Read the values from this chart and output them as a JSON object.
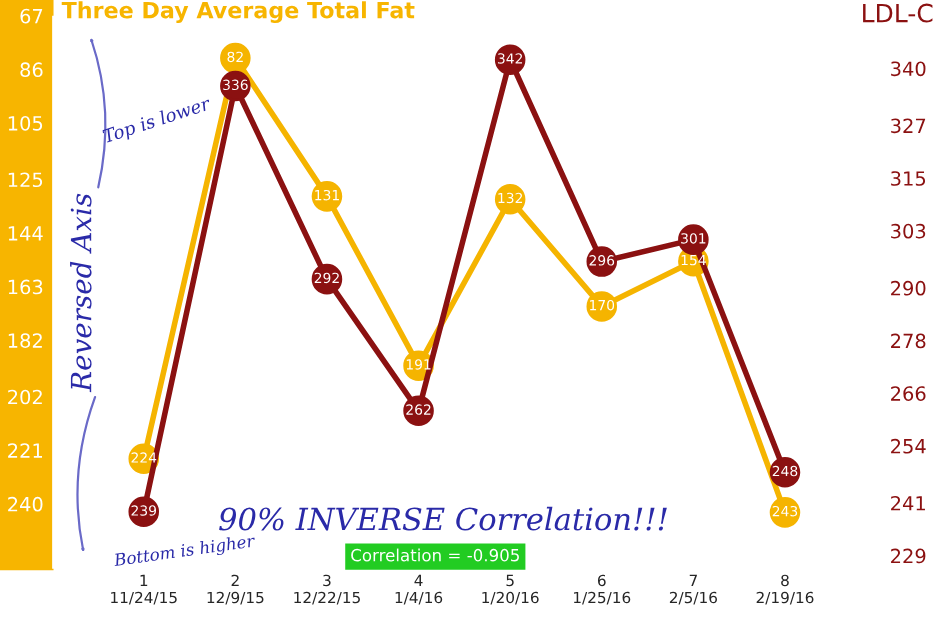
{
  "chart_data": {
    "type": "line",
    "title": "Three Day Average Total Fat",
    "y2label": "LDL-C",
    "categories": [
      "1\n11/24/15",
      "2\n12/9/15",
      "3\n12/22/15",
      "4\n1/4/16",
      "5\n1/20/16",
      "6\n1/25/16",
      "7\n2/5/16",
      "8\n2/19/16"
    ],
    "series": [
      {
        "color": "#f5b400",
        "values": [
          224,
          82,
          131,
          191,
          132,
          170,
          154,
          243
        ]
      },
      {
        "color": "#8b1111",
        "axis": "y2",
        "values": [
          239,
          336,
          292,
          262,
          342,
          296,
          301,
          248
        ]
      }
    ],
    "ylim": [
      263,
      67
    ],
    "yticks": [
      67,
      86,
      105,
      125,
      144,
      163,
      182,
      202,
      221,
      240
    ],
    "y2lim": [
      226,
      352
    ],
    "y2ticks": [
      229,
      241,
      254,
      266,
      278,
      290,
      303,
      315,
      327,
      340
    ],
    "data_labels": true,
    "marker": "circle",
    "line_style": "solid",
    "grid": false,
    "legend": false,
    "annotations": [
      "Top is lower",
      "Reversed Axis",
      "Bottom is higher",
      "90% INVERSE Correlation!!!",
      "Correlation = -0.905"
    ]
  }
}
